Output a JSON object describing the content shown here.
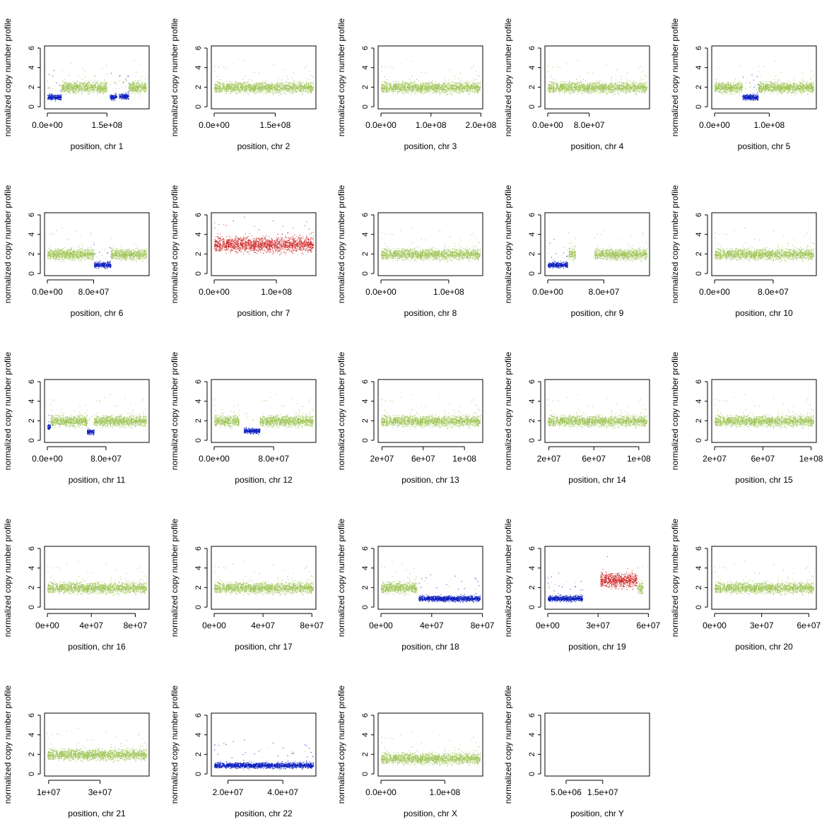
{
  "figure": {
    "ylabel": "normalized copy number profile",
    "ylim": [
      0,
      6
    ],
    "yticks": [
      0,
      2,
      4,
      6
    ],
    "colors": {
      "gain": "#cc1f1f",
      "neutral": "#9dc453",
      "loss": "#0b1dbd"
    }
  },
  "chart_data": [
    {
      "type": "scatter",
      "xlabel": "position, chr 1",
      "xlim": [
        0,
        249000000
      ],
      "ticks": [
        0,
        150000000
      ],
      "tick_labels": [
        "0.0e+00",
        "1.5e+08"
      ],
      "segments": [
        [
          0,
          14,
          "loss",
          1.0
        ],
        [
          14,
          60,
          "neutral",
          2.0
        ],
        [
          63,
          70,
          "loss",
          1.0
        ],
        [
          72,
          82,
          "loss",
          1.1
        ],
        [
          82,
          100,
          "neutral",
          2.0
        ]
      ]
    },
    {
      "type": "scatter",
      "xlabel": "position, chr 2",
      "xlim": [
        0,
        243000000
      ],
      "ticks": [
        0,
        150000000
      ],
      "tick_labels": [
        "0.0e+00",
        "1.5e+08"
      ],
      "segments": [
        [
          0,
          100,
          "neutral",
          2.0
        ]
      ]
    },
    {
      "type": "scatter",
      "xlabel": "position, chr 3",
      "xlim": [
        0,
        198000000
      ],
      "ticks": [
        0,
        100000000,
        200000000
      ],
      "tick_labels": [
        "0.0e+00",
        "1.0e+08",
        "2.0e+08"
      ],
      "segments": [
        [
          0,
          100,
          "neutral",
          2.0
        ]
      ]
    },
    {
      "type": "scatter",
      "xlabel": "position, chr 4",
      "xlim": [
        0,
        191000000
      ],
      "ticks": [
        0,
        80000000
      ],
      "tick_labels": [
        "0.0e+00",
        "8.0e+07"
      ],
      "segments": [
        [
          0,
          100,
          "neutral",
          2.0
        ]
      ]
    },
    {
      "type": "scatter",
      "xlabel": "position, chr 5",
      "xlim": [
        0,
        181000000
      ],
      "ticks": [
        0,
        100000000
      ],
      "tick_labels": [
        "0.0e+00",
        "1.0e+08"
      ],
      "segments": [
        [
          0,
          28,
          "neutral",
          2.0
        ],
        [
          28,
          44,
          "loss",
          1.0
        ],
        [
          44,
          100,
          "neutral",
          2.0
        ]
      ]
    },
    {
      "type": "scatter",
      "xlabel": "position, chr 6",
      "xlim": [
        0,
        171000000
      ],
      "ticks": [
        0,
        80000000
      ],
      "tick_labels": [
        "0.0e+00",
        "8.0e+07"
      ],
      "segments": [
        [
          0,
          47,
          "neutral",
          2.0
        ],
        [
          47,
          64,
          "loss",
          0.9
        ],
        [
          64,
          100,
          "neutral",
          2.0
        ]
      ]
    },
    {
      "type": "scatter",
      "xlabel": "position, chr 7",
      "xlim": [
        0,
        159000000
      ],
      "ticks": [
        0,
        100000000
      ],
      "tick_labels": [
        "0.0e+00",
        "1.0e+08"
      ],
      "segments": [
        [
          0,
          100,
          "gain",
          3.0
        ]
      ]
    },
    {
      "type": "scatter",
      "xlabel": "position, chr 8",
      "xlim": [
        0,
        146000000
      ],
      "ticks": [
        0,
        100000000
      ],
      "tick_labels": [
        "0.0e+00",
        "1.0e+08"
      ],
      "segments": [
        [
          0,
          100,
          "neutral",
          2.0
        ]
      ]
    },
    {
      "type": "scatter",
      "xlabel": "position, chr 9",
      "xlim": [
        0,
        141000000
      ],
      "ticks": [
        0,
        80000000
      ],
      "tick_labels": [
        "0.0e+00",
        "8.0e+07"
      ],
      "segments": [
        [
          0,
          20,
          "loss",
          0.9
        ],
        [
          21,
          28,
          "neutral",
          2.0
        ],
        [
          47,
          100,
          "neutral",
          2.0
        ]
      ]
    },
    {
      "type": "scatter",
      "xlabel": "position, chr 10",
      "xlim": [
        0,
        135000000
      ],
      "ticks": [
        0,
        80000000
      ],
      "tick_labels": [
        "0.0e+00",
        "8.0e+07"
      ],
      "segments": [
        [
          0,
          100,
          "neutral",
          2.0
        ]
      ]
    },
    {
      "type": "scatter",
      "xlabel": "position, chr 11",
      "xlim": [
        0,
        135000000
      ],
      "ticks": [
        0,
        80000000
      ],
      "tick_labels": [
        "0.0e+00",
        "8.0e+07"
      ],
      "segments": [
        [
          0,
          3,
          "loss",
          1.4
        ],
        [
          3,
          40,
          "neutral",
          2.0
        ],
        [
          40,
          47,
          "loss",
          0.9
        ],
        [
          47,
          100,
          "neutral",
          2.0
        ]
      ]
    },
    {
      "type": "scatter",
      "xlabel": "position, chr 12",
      "xlim": [
        0,
        133000000
      ],
      "ticks": [
        0,
        80000000
      ],
      "tick_labels": [
        "0.0e+00",
        "8.0e+07"
      ],
      "segments": [
        [
          0,
          25,
          "neutral",
          2.0
        ],
        [
          30,
          46,
          "loss",
          1.0
        ],
        [
          46,
          100,
          "neutral",
          2.0
        ]
      ]
    },
    {
      "type": "scatter",
      "xlabel": "position, chr 13",
      "xlim": [
        19000000,
        115000000
      ],
      "ticks": [
        20000000,
        60000000,
        100000000
      ],
      "tick_labels": [
        "2e+07",
        "6e+07",
        "1e+08"
      ],
      "segments": [
        [
          0,
          100,
          "neutral",
          2.0
        ]
      ]
    },
    {
      "type": "scatter",
      "xlabel": "position, chr 14",
      "xlim": [
        19000000,
        107000000
      ],
      "ticks": [
        20000000,
        60000000,
        100000000
      ],
      "tick_labels": [
        "2e+07",
        "6e+07",
        "1e+08"
      ],
      "segments": [
        [
          0,
          100,
          "neutral",
          2.0
        ]
      ]
    },
    {
      "type": "scatter",
      "xlabel": "position, chr 15",
      "xlim": [
        20000000,
        102000000
      ],
      "ticks": [
        20000000,
        60000000,
        100000000
      ],
      "tick_labels": [
        "2e+07",
        "6e+07",
        "1e+08"
      ],
      "segments": [
        [
          0,
          100,
          "neutral",
          2.0
        ]
      ]
    },
    {
      "type": "scatter",
      "xlabel": "position, chr 16",
      "xlim": [
        0,
        90000000
      ],
      "ticks": [
        0,
        40000000,
        80000000
      ],
      "tick_labels": [
        "0e+00",
        "4e+07",
        "8e+07"
      ],
      "segments": [
        [
          0,
          100,
          "neutral",
          2.0
        ]
      ]
    },
    {
      "type": "scatter",
      "xlabel": "position, chr 17",
      "xlim": [
        0,
        81000000
      ],
      "ticks": [
        0,
        40000000,
        80000000
      ],
      "tick_labels": [
        "0e+00",
        "4e+07",
        "8e+07"
      ],
      "segments": [
        [
          0,
          100,
          "neutral",
          2.0
        ]
      ]
    },
    {
      "type": "scatter",
      "xlabel": "position, chr 18",
      "xlim": [
        0,
        78000000
      ],
      "ticks": [
        0,
        40000000,
        80000000
      ],
      "tick_labels": [
        "0e+00",
        "4e+07",
        "8e+07"
      ],
      "segments": [
        [
          0,
          36,
          "neutral",
          2.0
        ],
        [
          38,
          100,
          "loss",
          0.9
        ]
      ]
    },
    {
      "type": "scatter",
      "xlabel": "position, chr 19",
      "xlim": [
        0,
        59000000
      ],
      "ticks": [
        0,
        30000000,
        60000000
      ],
      "tick_labels": [
        "0e+00",
        "3e+07",
        "6e+07"
      ],
      "segments": [
        [
          0,
          35,
          "loss",
          0.9
        ],
        [
          53,
          90,
          "gain",
          2.8
        ],
        [
          90,
          96,
          "neutral",
          2.0
        ]
      ]
    },
    {
      "type": "scatter",
      "xlabel": "position, chr 20",
      "xlim": [
        0,
        63000000
      ],
      "ticks": [
        0,
        30000000,
        60000000
      ],
      "tick_labels": [
        "0e+00",
        "3e+07",
        "6e+07"
      ],
      "segments": [
        [
          0,
          100,
          "neutral",
          2.0
        ]
      ]
    },
    {
      "type": "scatter",
      "xlabel": "position, chr 21",
      "xlim": [
        9500000,
        48000000
      ],
      "ticks": [
        10000000,
        30000000
      ],
      "tick_labels": [
        "1e+07",
        "3e+07"
      ],
      "segments": [
        [
          0,
          100,
          "neutral",
          2.0
        ]
      ]
    },
    {
      "type": "scatter",
      "xlabel": "position, chr 22",
      "xlim": [
        15000000,
        51000000
      ],
      "ticks": [
        20000000,
        40000000
      ],
      "tick_labels": [
        "2.0e+07",
        "4.0e+07"
      ],
      "segments": [
        [
          0,
          100,
          "loss",
          0.9
        ]
      ]
    },
    {
      "type": "scatter",
      "xlabel": "position, chr X",
      "xlim": [
        0,
        155000000
      ],
      "ticks": [
        0,
        100000000
      ],
      "tick_labels": [
        "0.0e+00",
        "1.0e+08"
      ],
      "segments": [
        [
          0,
          100,
          "neutral",
          1.6
        ]
      ]
    },
    {
      "type": "scatter",
      "xlabel": "position, chr Y",
      "xlim": [
        0,
        27000000
      ],
      "ticks": [
        5000000,
        15000000
      ],
      "tick_labels": [
        "5.0e+06",
        "1.5e+07"
      ],
      "segments": []
    }
  ]
}
